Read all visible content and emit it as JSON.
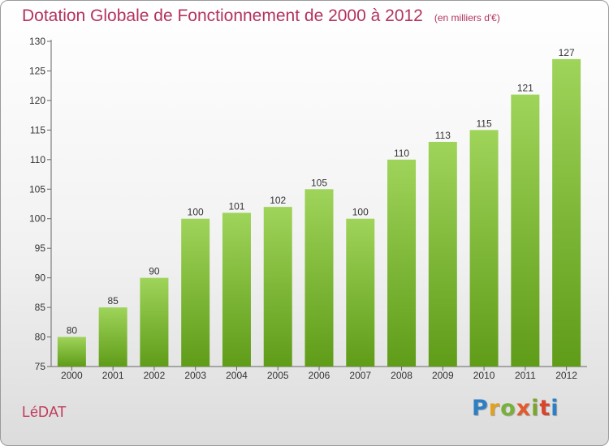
{
  "title": "Dotation Globale de Fonctionnement de 2000 à 2012",
  "unit": "(en milliers d'€)",
  "commune": "LéDAT",
  "logo": {
    "letters": [
      "P",
      "r",
      "o",
      "x",
      "i",
      "t",
      "i"
    ]
  },
  "colors": {
    "title": "#b3325e",
    "bar_top": "#9fd45a",
    "bar_bottom": "#5f9c18"
  },
  "chart_data": {
    "type": "bar",
    "categories": [
      "2000",
      "2001",
      "2002",
      "2003",
      "2004",
      "2005",
      "2006",
      "2007",
      "2008",
      "2009",
      "2010",
      "2011",
      "2012"
    ],
    "values": [
      80,
      85,
      90,
      100,
      101,
      102,
      105,
      100,
      110,
      113,
      115,
      121,
      127
    ],
    "data_labels": [
      "80",
      "85",
      "90",
      "100",
      "101",
      "102",
      "105",
      "100",
      "110",
      "113",
      "115",
      "121",
      "127"
    ],
    "ylim": [
      75,
      130
    ],
    "yticks": [
      75,
      80,
      85,
      90,
      95,
      100,
      105,
      110,
      115,
      120,
      125,
      130
    ],
    "grid": false
  }
}
